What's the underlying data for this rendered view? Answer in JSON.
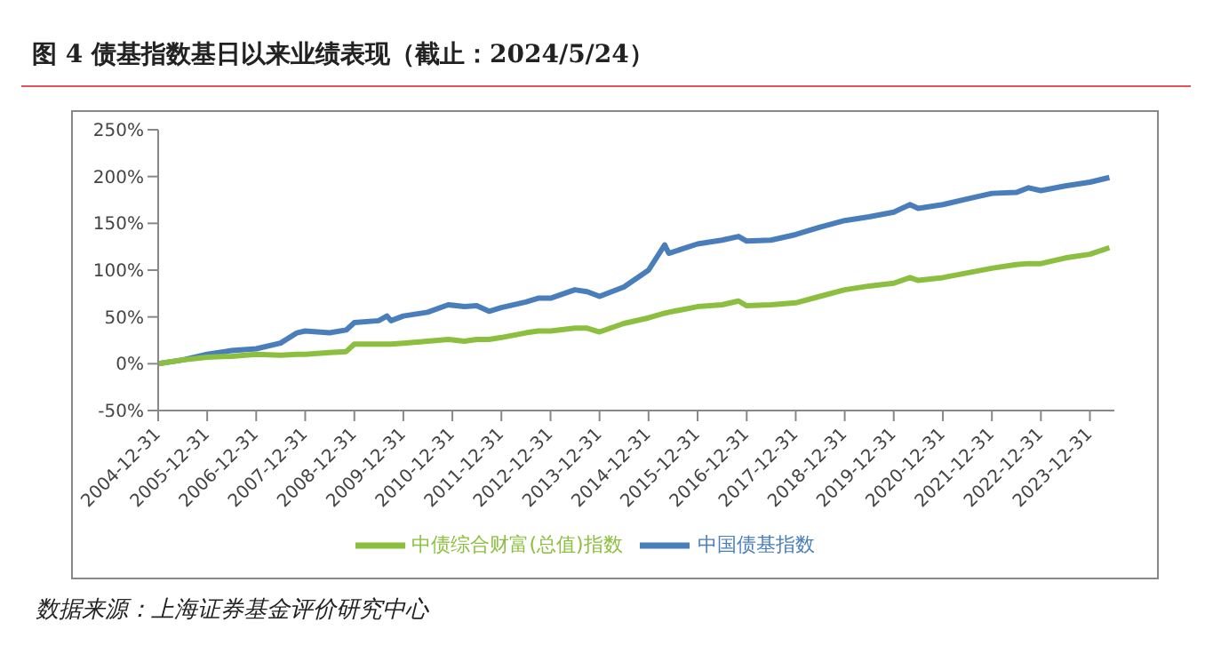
{
  "chart_data": {
    "type": "line",
    "title": "图 4 债基指数基日以来业绩表现（截止：2024/5/24）",
    "annotations": [
      "数据来源：上海证券基金评价研究中心"
    ],
    "x": [
      "2004-12-31",
      "2005-06-30",
      "2005-12-31",
      "2006-06-30",
      "2006-12-31",
      "2007-06-30",
      "2007-10-31",
      "2007-12-31",
      "2008-06-30",
      "2008-10-31",
      "2008-12-31",
      "2009-06-30",
      "2009-08-31",
      "2009-09-30",
      "2009-12-31",
      "2010-06-30",
      "2010-11-30",
      "2011-03-31",
      "2011-06-30",
      "2011-09-30",
      "2011-12-31",
      "2012-06-30",
      "2012-09-30",
      "2012-12-31",
      "2013-06-30",
      "2013-09-30",
      "2013-12-31",
      "2014-06-30",
      "2014-12-31",
      "2015-04-30",
      "2015-05-31",
      "2015-12-31",
      "2016-06-30",
      "2016-10-31",
      "2016-12-31",
      "2017-06-30",
      "2017-12-31",
      "2018-06-30",
      "2018-12-31",
      "2019-06-30",
      "2019-12-31",
      "2020-04-30",
      "2020-06-30",
      "2020-12-31",
      "2021-06-30",
      "2021-12-31",
      "2022-06-30",
      "2022-09-30",
      "2022-12-31",
      "2023-06-30",
      "2023-12-31",
      "2024-05-24"
    ],
    "series": [
      {
        "name": "中国债基指数",
        "color": "#4a7ebb",
        "values": [
          0,
          4,
          10,
          14,
          16,
          22,
          33,
          35,
          33,
          36,
          44,
          46,
          51,
          46,
          51,
          55,
          63,
          61,
          62,
          56,
          60,
          66,
          70,
          70,
          79,
          77,
          72,
          82,
          100,
          127,
          118,
          128,
          132,
          136,
          131,
          132,
          138,
          146,
          153,
          157,
          162,
          170,
          166,
          170,
          176,
          182,
          183,
          188,
          185,
          190,
          194,
          199
        ]
      },
      {
        "name": "中债综合财富(总值)指数",
        "color": "#8cbf3f",
        "values": [
          0,
          4,
          7,
          8,
          10,
          9,
          10,
          10,
          12,
          13,
          21,
          21,
          21,
          21,
          22,
          24,
          26,
          24,
          26,
          26,
          28,
          33,
          35,
          35,
          38,
          38,
          34,
          43,
          49,
          54,
          55,
          61,
          63,
          67,
          62,
          63,
          65,
          72,
          79,
          83,
          86,
          92,
          89,
          92,
          97,
          102,
          106,
          107,
          107,
          113,
          117,
          124
        ]
      }
    ],
    "xlim": [
      "2004-12-31",
      "2024-06-30"
    ],
    "xticks": [
      "2004-12-31",
      "2005-12-31",
      "2006-12-31",
      "2007-12-31",
      "2008-12-31",
      "2009-12-31",
      "2010-12-31",
      "2011-12-31",
      "2012-12-31",
      "2013-12-31",
      "2014-12-31",
      "2015-12-31",
      "2016-12-31",
      "2017-12-31",
      "2018-12-31",
      "2019-12-31",
      "2020-12-31",
      "2021-12-31",
      "2022-12-31",
      "2023-12-31"
    ],
    "ylim": [
      -50,
      250
    ],
    "yticks": [
      {
        "value": -50,
        "label": "-50%"
      },
      {
        "value": 0,
        "label": "0%"
      },
      {
        "value": 50,
        "label": "50%"
      },
      {
        "value": 100,
        "label": "100%"
      },
      {
        "value": 150,
        "label": "150%"
      },
      {
        "value": 200,
        "label": "200%"
      },
      {
        "value": 250,
        "label": "250%"
      }
    ],
    "grid": false,
    "legend": "bottom",
    "marker": "none",
    "line_style": "solid"
  }
}
